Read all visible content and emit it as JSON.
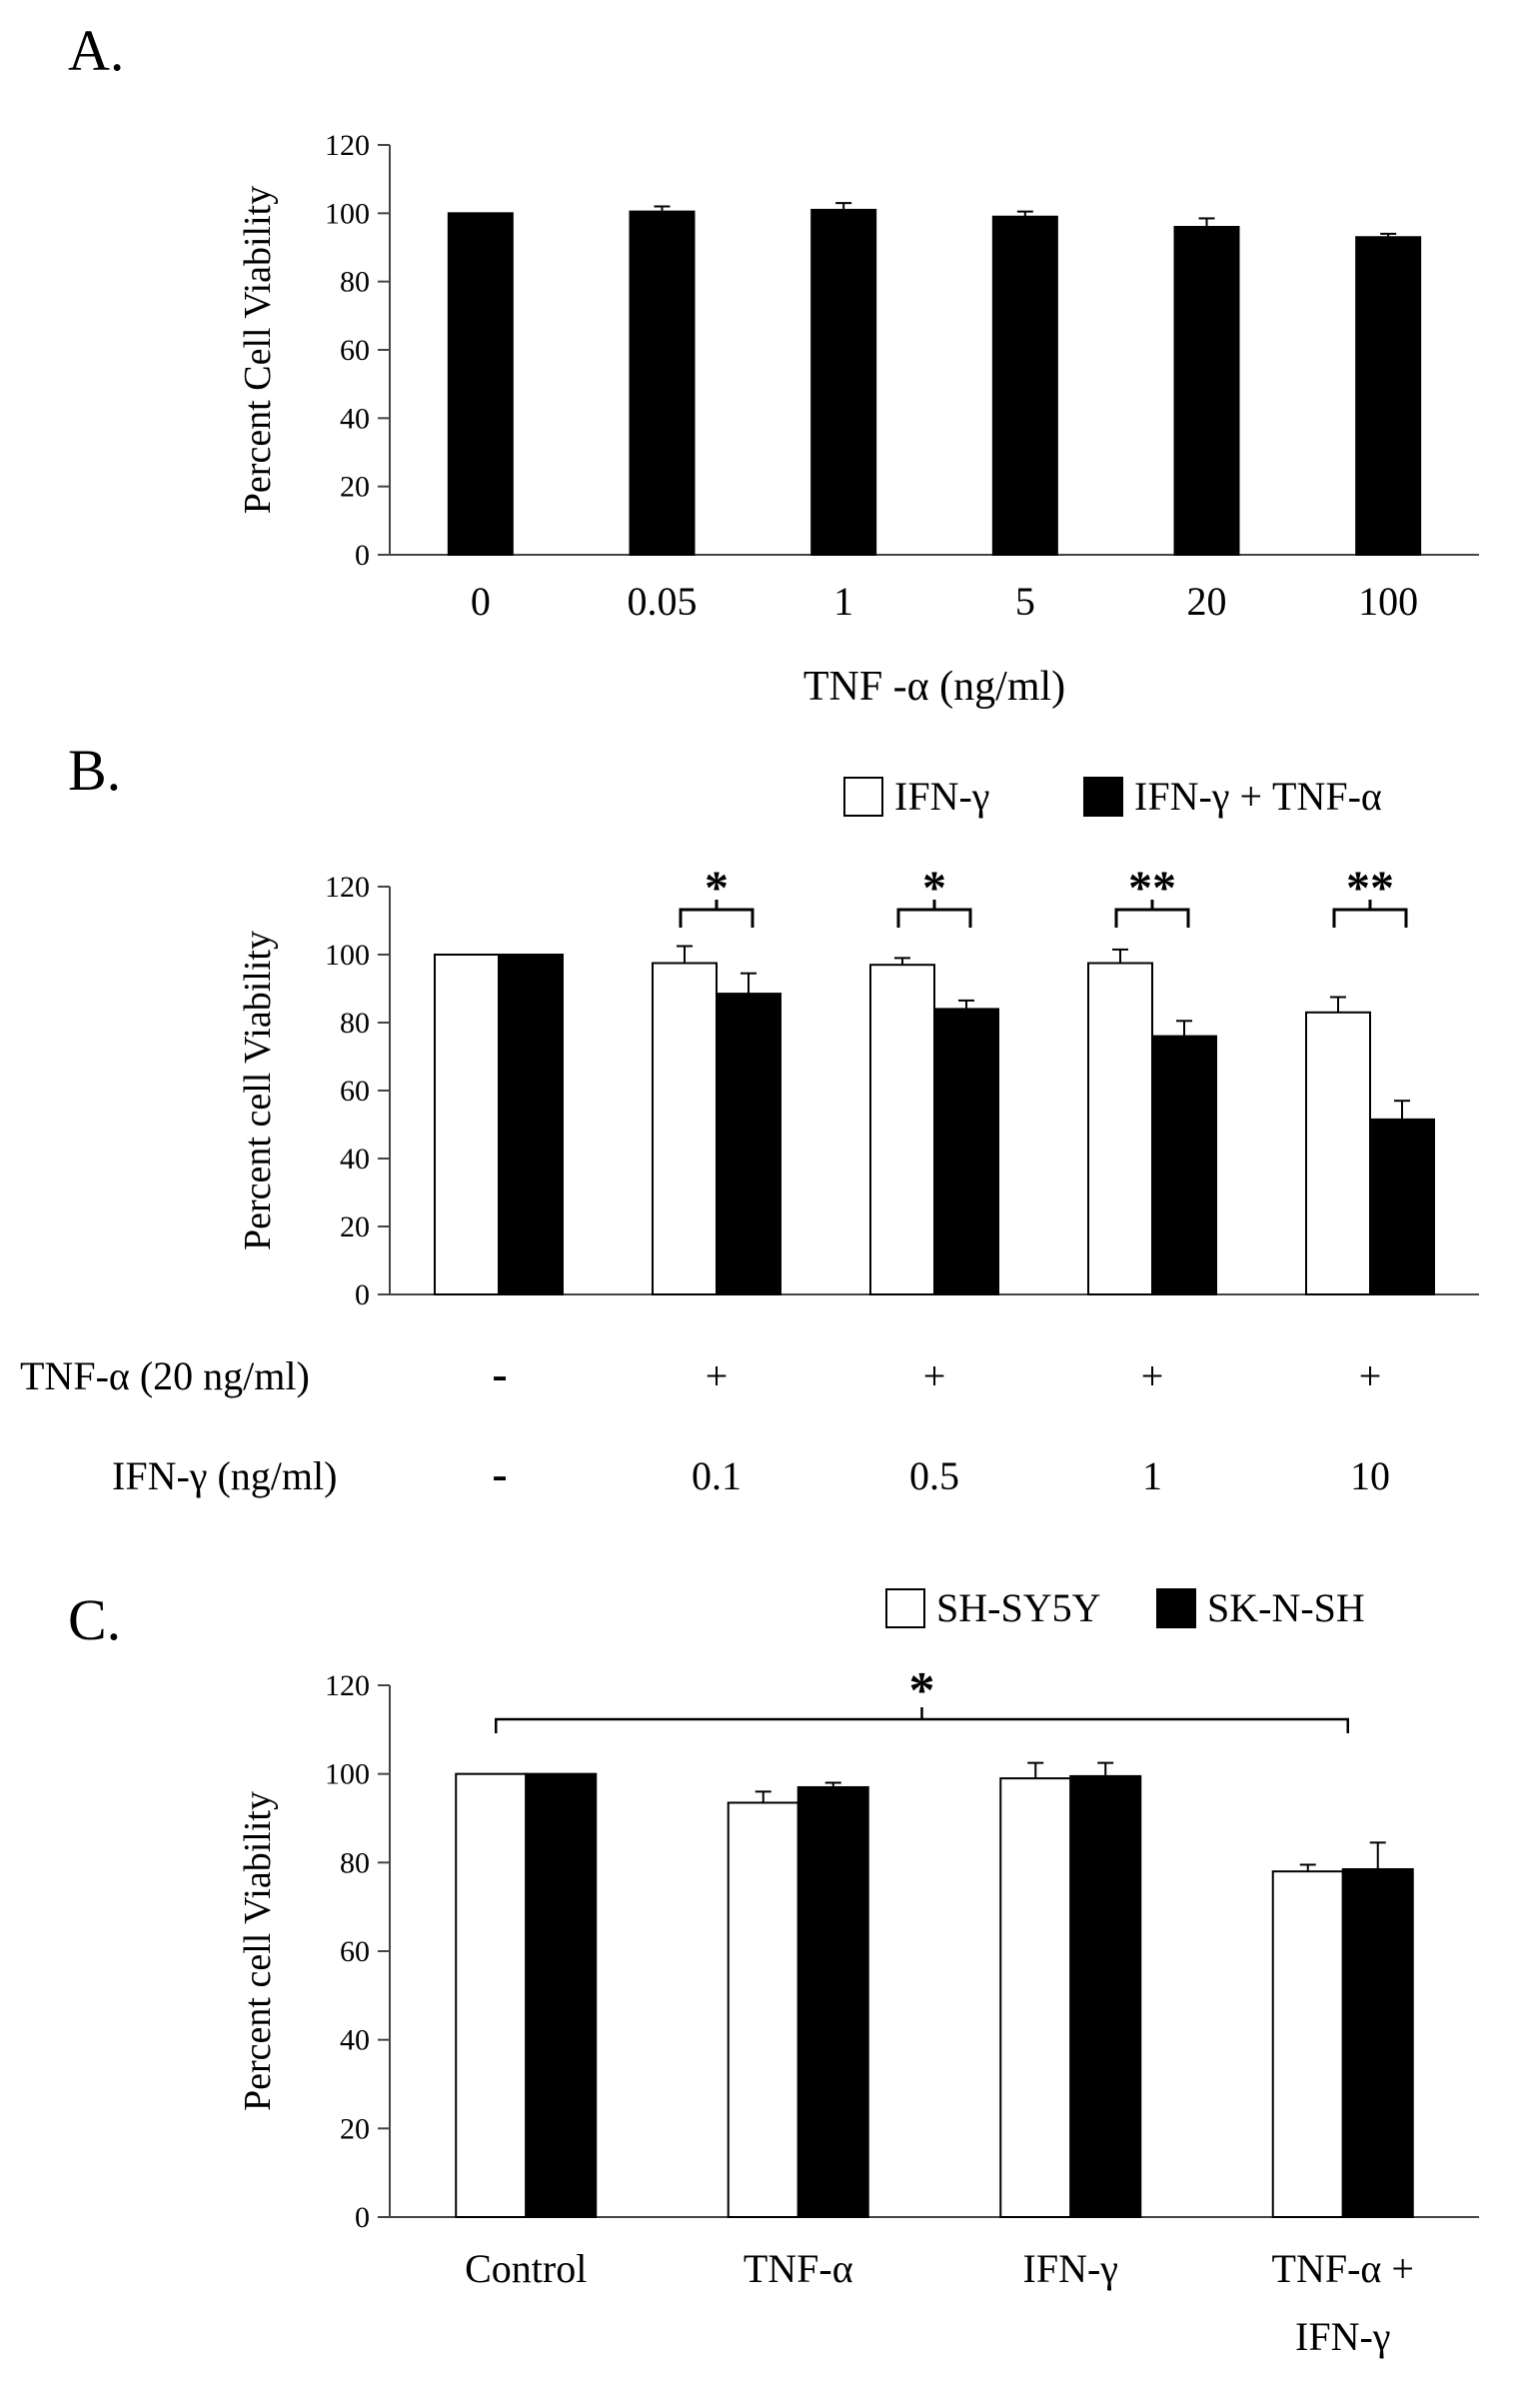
{
  "chart_data": [
    {
      "panel": "A.",
      "type": "bar",
      "ylabel": "Percent Cell Viability",
      "xlabel": "TNF -α (ng/ml)",
      "ylim": [
        0,
        120
      ],
      "yticks": [
        0,
        20,
        40,
        60,
        80,
        100,
        120
      ],
      "categories": [
        "0",
        "0.05",
        "1",
        "5",
        "20",
        "100"
      ],
      "series": [
        {
          "name": "TNF-α",
          "color": "#000000",
          "values": [
            100,
            100.5,
            101,
            99,
            96,
            93
          ],
          "errors": [
            0,
            1.5,
            2,
            1.5,
            2.5,
            1
          ]
        }
      ]
    },
    {
      "panel": "B.",
      "type": "bar",
      "ylabel": "Percent cell Viability",
      "ylim": [
        0,
        120
      ],
      "yticks": [
        0,
        20,
        40,
        60,
        80,
        100,
        120
      ],
      "legend": [
        "IFN-γ",
        "IFN-γ + TNF-α"
      ],
      "series": [
        {
          "name": "IFN-γ",
          "color": "#ffffff",
          "values": [
            100,
            97.5,
            97,
            97.5,
            83
          ],
          "errors": [
            0,
            5,
            2,
            4,
            4.5
          ]
        },
        {
          "name": "IFN-γ + TNF-α",
          "color": "#000000",
          "values": [
            100,
            88.5,
            84,
            76,
            51.5
          ],
          "errors": [
            0,
            6,
            2.5,
            4.5,
            5.5
          ]
        }
      ],
      "significance": [
        "",
        "*",
        "*",
        "**",
        "**"
      ],
      "condition_rows": [
        {
          "label": "TNF-α (20 ng/ml)",
          "values": [
            "-",
            "+",
            "+",
            "+",
            "+"
          ]
        },
        {
          "label": "IFN-γ (ng/ml)",
          "values": [
            "-",
            "0.1",
            "0.5",
            "1",
            "10"
          ]
        }
      ]
    },
    {
      "panel": "C.",
      "type": "bar",
      "ylabel": "Percent cell Viability",
      "ylim": [
        0,
        120
      ],
      "yticks": [
        0,
        20,
        40,
        60,
        80,
        100,
        120
      ],
      "legend": [
        "SH-SY5Y",
        "SK-N-SH"
      ],
      "categories": [
        "Control",
        "TNF-α",
        "IFN-γ",
        "TNF-α +\nIFN-γ"
      ],
      "series": [
        {
          "name": "SH-SY5Y",
          "color": "#ffffff",
          "values": [
            100,
            93.5,
            99,
            78
          ],
          "errors": [
            0,
            2.5,
            3.5,
            1.5
          ]
        },
        {
          "name": "SK-N-SH",
          "color": "#000000",
          "values": [
            100,
            97,
            99.5,
            78.5
          ],
          "errors": [
            0,
            1,
            3,
            6
          ]
        }
      ],
      "significance": [
        {
          "from": "Control",
          "to": "TNF-α +\nIFN-γ",
          "label": "*"
        }
      ]
    }
  ]
}
